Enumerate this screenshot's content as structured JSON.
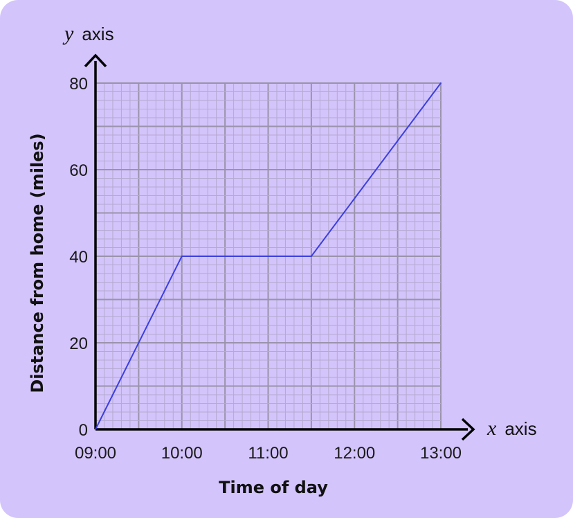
{
  "colors": {
    "background": "#d3c4fb",
    "grid_minor": "#b4a9cf",
    "grid_major": "#9a93aa",
    "line": "#3b3fe0",
    "axis": "#000000"
  },
  "chart_data": {
    "type": "line",
    "title": "",
    "xlabel": "Time of day",
    "ylabel": "Distance from home (miles)",
    "x_axis_name": {
      "var": "x",
      "word": "axis"
    },
    "y_axis_name": {
      "var": "y",
      "word": "axis"
    },
    "x_unit": "hours",
    "x_ticks": [
      "09:00",
      "10:00",
      "11:00",
      "12:00",
      "13:00"
    ],
    "y_ticks": [
      "0",
      "20",
      "40",
      "60",
      "80"
    ],
    "xlim": [
      "09:00",
      "13:00"
    ],
    "ylim": [
      0,
      80
    ],
    "grid": true,
    "series": [
      {
        "x": [
          "09:00",
          "10:00",
          "11:30",
          "13:00"
        ],
        "y": [
          0,
          40,
          40,
          80
        ]
      }
    ]
  }
}
